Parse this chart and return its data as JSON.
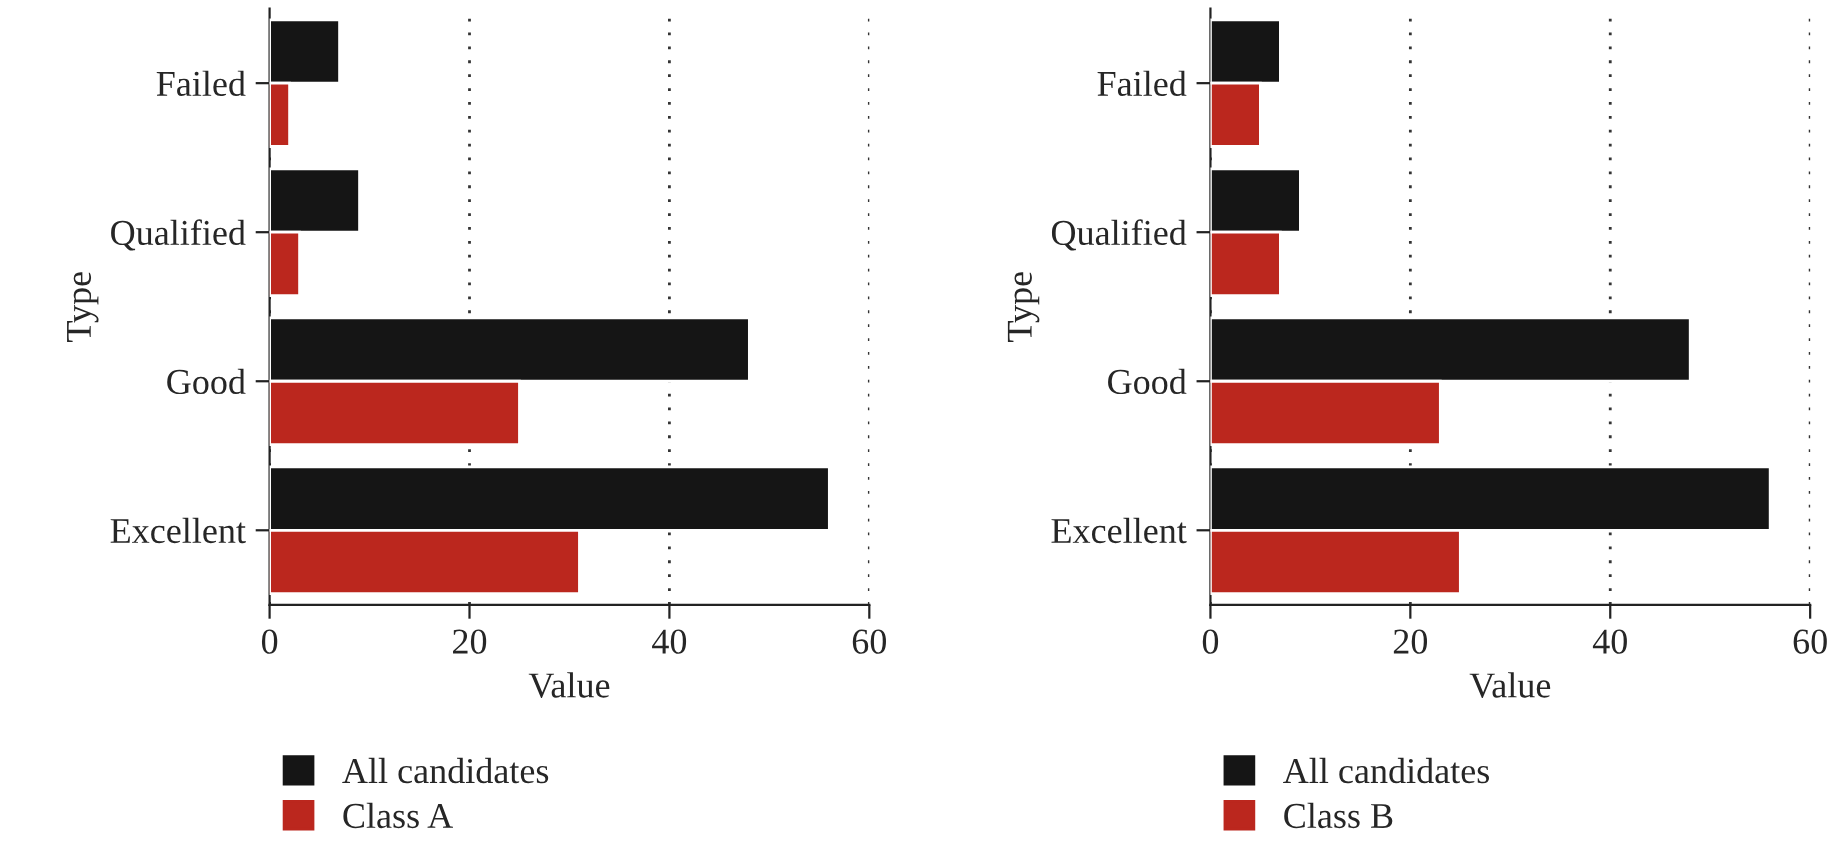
{
  "chart_data": [
    {
      "type": "bar",
      "orientation": "horizontal",
      "xlabel": "Value",
      "ylabel": "Type",
      "categories": [
        "Failed",
        "Qualified",
        "Good",
        "Excellent"
      ],
      "series": [
        {
          "name": "All candidates",
          "color": "#151515",
          "values": [
            7,
            9,
            48,
            56
          ]
        },
        {
          "name": "Class A",
          "color": "#bb271e",
          "values": [
            2,
            3,
            25,
            31
          ]
        }
      ],
      "xlim": [
        0,
        60
      ],
      "xticks": [
        0,
        20,
        40,
        60
      ],
      "grid": "x",
      "legend": "bottom"
    },
    {
      "type": "bar",
      "orientation": "horizontal",
      "xlabel": "Value",
      "ylabel": "Type",
      "categories": [
        "Failed",
        "Qualified",
        "Good",
        "Excellent"
      ],
      "series": [
        {
          "name": "All candidates",
          "color": "#151515",
          "values": [
            7,
            9,
            48,
            56
          ]
        },
        {
          "name": "Class B",
          "color": "#bb271e",
          "values": [
            5,
            7,
            23,
            25
          ]
        }
      ],
      "xlim": [
        0,
        60
      ],
      "xticks": [
        0,
        20,
        40,
        60
      ],
      "grid": "x",
      "legend": "bottom"
    }
  ]
}
